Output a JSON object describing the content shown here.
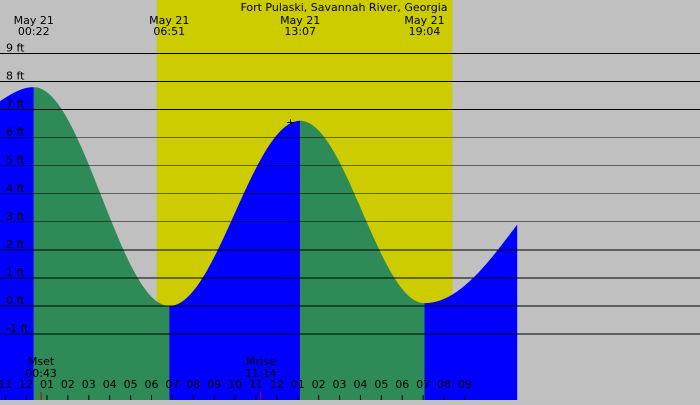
{
  "chart_data": {
    "type": "area",
    "title": "Fort Pulaski, Savannah River, Georgia",
    "y_unit": "ft",
    "ylim": [
      -2,
      10
    ],
    "y_ticks": [
      {
        "value": 9,
        "label": "9 ft"
      },
      {
        "value": 8,
        "label": "8 ft"
      },
      {
        "value": 7,
        "label": "7 ft"
      },
      {
        "value": 6,
        "label": "6 ft"
      },
      {
        "value": 5,
        "label": "5 ft"
      },
      {
        "value": 4,
        "label": "4 ft"
      },
      {
        "value": 3,
        "label": "3 ft"
      },
      {
        "value": 2,
        "label": "2 ft"
      },
      {
        "value": 1,
        "label": "1 ft"
      },
      {
        "value": 0,
        "label": "0 ft"
      },
      {
        "value": -1,
        "label": "-1 ft"
      }
    ],
    "x_range_hours": [
      -1.25,
      32.25
    ],
    "x_ticks": [
      {
        "hour": 23,
        "label": "11"
      },
      {
        "hour": 24,
        "label": "12"
      },
      {
        "hour": 25,
        "label": "01"
      },
      {
        "hour": 26,
        "label": "02"
      },
      {
        "hour": 27,
        "label": "03"
      },
      {
        "hour": 28,
        "label": "04"
      },
      {
        "hour": 29,
        "label": "05"
      },
      {
        "hour": 30,
        "label": "06"
      },
      {
        "hour": 31,
        "label": "07"
      },
      {
        "hour": 32,
        "label": "08"
      },
      {
        "hour": 33,
        "label": "09"
      },
      {
        "hour": 34,
        "label": "10"
      },
      {
        "hour": 35,
        "label": "11"
      },
      {
        "hour": 36,
        "label": "12"
      },
      {
        "hour": 37,
        "label": "01"
      },
      {
        "hour": 38,
        "label": "02"
      },
      {
        "hour": 39,
        "label": "03"
      },
      {
        "hour": 40,
        "label": "04"
      },
      {
        "hour": 41,
        "label": "05"
      },
      {
        "hour": 42,
        "label": "06"
      },
      {
        "hour": 43,
        "label": "07"
      },
      {
        "hour": 44,
        "label": "08"
      },
      {
        "hour": 45,
        "label": "09"
      }
    ],
    "daylight": {
      "start_hour": 6.25,
      "end_hour": 20.4
    },
    "tide_events": [
      {
        "time": "00:22",
        "date": "May 21",
        "type": "high",
        "height_ft": 7.8
      },
      {
        "time": "06:51",
        "date": "May 21",
        "type": "low",
        "height_ft": 0.0
      },
      {
        "time": "13:07",
        "date": "May 21",
        "type": "high",
        "height_ft": 6.6
      },
      {
        "time": "19:04",
        "date": "May 21",
        "type": "low",
        "height_ft": 0.1
      }
    ],
    "series": [
      {
        "points": [
          {
            "hour": -1.25,
            "ft": 7.3
          },
          {
            "hour": 0.3667,
            "ft": 7.8
          },
          {
            "hour": 6.85,
            "ft": 0.0
          },
          {
            "hour": 13.1167,
            "ft": 6.6
          },
          {
            "hour": 19.0667,
            "ft": 0.1
          },
          {
            "hour": 23.5,
            "ft": 2.9
          }
        ]
      }
    ],
    "moon_events": [
      {
        "label": "Mset",
        "time": "00:43"
      },
      {
        "label": "Mrise",
        "time": "11:14"
      }
    ],
    "colors": {
      "background": "#c0c0c0",
      "daylight": "#cccc00",
      "rising": "#0000ff",
      "falling": "#2e8b57",
      "grid": "#000000"
    }
  }
}
